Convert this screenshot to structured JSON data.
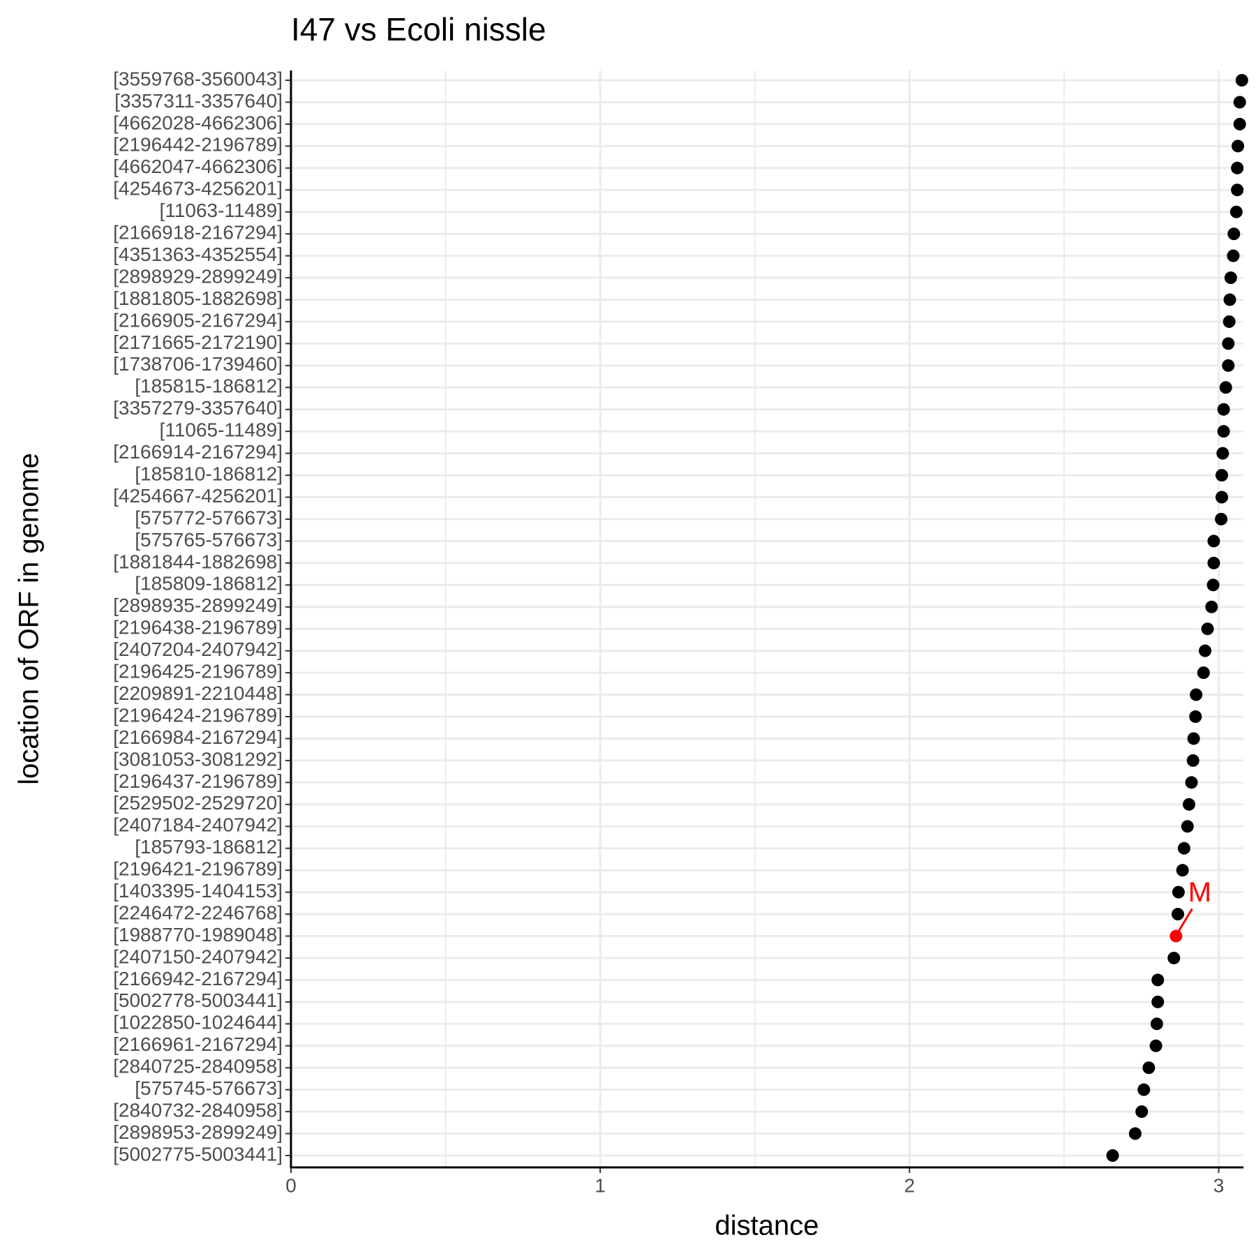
{
  "chart_data": {
    "type": "dot",
    "title": "I47 vs Ecoli nissle",
    "x_label": "distance",
    "y_label": "location of ORF in genome",
    "color": "#000000",
    "grid": true,
    "categories": [
      "[3559768-3560043]",
      "[3357311-3357640]",
      "[4662028-4662306]",
      "[2196442-2196789]",
      "[4662047-4662306]",
      "[4254673-4256201]",
      "[11063-11489]",
      "[2166918-2167294]",
      "[4351363-4352554]",
      "[2898929-2899249]",
      "[1881805-1882698]",
      "[2166905-2167294]",
      "[2171665-2172190]",
      "[1738706-1739460]",
      "[185815-186812]",
      "[3357279-3357640]",
      "[11065-11489]",
      "[2166914-2167294]",
      "[185810-186812]",
      "[4254667-4256201]",
      "[575772-576673]",
      "[575765-576673]",
      "[1881844-1882698]",
      "[185809-186812]",
      "[2898935-2899249]",
      "[2196438-2196789]",
      "[2407204-2407942]",
      "[2196425-2196789]",
      "[2209891-2210448]",
      "[2196424-2196789]",
      "[2166984-2167294]",
      "[3081053-3081292]",
      "[2196437-2196789]",
      "[2529502-2529720]",
      "[2407184-2407942]",
      "[185793-186812]",
      "[2196421-2196789]",
      "[1403395-1404153]",
      "[2246472-2246768]",
      "[1988770-1989048]",
      "[2407150-2407942]",
      "[2166942-2167294]",
      "[5002778-5003441]",
      "[1022850-1024644]",
      "[2166961-2167294]",
      "[2840725-2840958]",
      "[575745-576673]",
      "[2840732-2840958]",
      "[2898953-2899249]",
      "[5002775-5003441]"
    ],
    "values": [
      3.075,
      3.068,
      3.068,
      3.062,
      3.06,
      3.06,
      3.057,
      3.049,
      3.047,
      3.039,
      3.036,
      3.034,
      3.031,
      3.031,
      3.023,
      3.016,
      3.016,
      3.013,
      3.01,
      3.01,
      3.008,
      2.984,
      2.984,
      2.982,
      2.977,
      2.964,
      2.956,
      2.951,
      2.927,
      2.925,
      2.919,
      2.917,
      2.912,
      2.904,
      2.899,
      2.888,
      2.883,
      2.87,
      2.868,
      2.862,
      2.855,
      2.803,
      2.803,
      2.8,
      2.797,
      2.774,
      2.758,
      2.751,
      2.73,
      2.657
    ],
    "xlim": [
      0,
      3.08
    ],
    "xticks": [
      0,
      1,
      2,
      3
    ],
    "xminor": [
      0.5,
      1.5,
      2.5
    ],
    "annotations": [
      {
        "text": "M",
        "category": "[1988770-1989048]",
        "color": "#ff0000"
      }
    ]
  }
}
